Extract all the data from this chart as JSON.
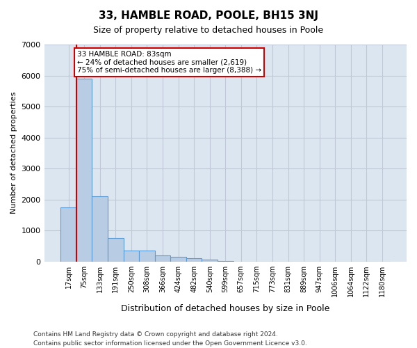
{
  "title": "33, HAMBLE ROAD, POOLE, BH15 3NJ",
  "subtitle": "Size of property relative to detached houses in Poole",
  "xlabel": "Distribution of detached houses by size in Poole",
  "ylabel": "Number of detached properties",
  "footnote1": "Contains HM Land Registry data © Crown copyright and database right 2024.",
  "footnote2": "Contains public sector information licensed under the Open Government Licence v3.0.",
  "bins": [
    "17sqm",
    "75sqm",
    "133sqm",
    "191sqm",
    "250sqm",
    "308sqm",
    "366sqm",
    "424sqm",
    "482sqm",
    "540sqm",
    "599sqm",
    "657sqm",
    "715sqm",
    "773sqm",
    "831sqm",
    "889sqm",
    "947sqm",
    "1006sqm",
    "1064sqm",
    "1122sqm",
    "1180sqm"
  ],
  "values": [
    1750,
    5900,
    2100,
    750,
    350,
    350,
    200,
    150,
    100,
    50,
    10,
    0,
    0,
    0,
    0,
    0,
    0,
    0,
    0,
    0,
    0
  ],
  "bar_color": "#b8cce4",
  "bar_edge_color": "#5b9bd5",
  "grid_color": "#c0c8d8",
  "background_color": "#dce6f1",
  "property_line_color": "#cc0000",
  "annotation_text": "33 HAMBLE ROAD: 83sqm\n← 24% of detached houses are smaller (2,619)\n75% of semi-detached houses are larger (8,388) →",
  "annotation_box_color": "#cc0000",
  "ylim": [
    0,
    7000
  ],
  "yticks": [
    0,
    1000,
    2000,
    3000,
    4000,
    5000,
    6000,
    7000
  ]
}
